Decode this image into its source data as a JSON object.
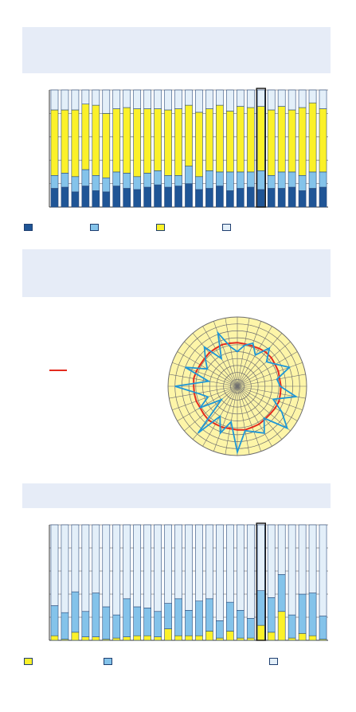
{
  "colors": {
    "navy": "#1f5596",
    "lightblue": "#84c3ea",
    "yellow": "#fbf129",
    "pale": "#e3eff9",
    "polar_fill": "#fdf5a8",
    "polar_grid": "#6f6f6f",
    "red": "#e32b1e",
    "cyan": "#1f97d6",
    "header_bg": "#e6ecf7"
  },
  "legend1": [
    {
      "color": "navy",
      "label": ""
    },
    {
      "color": "lightblue",
      "label": ""
    },
    {
      "color": "yellow",
      "label": ""
    },
    {
      "color": "pale",
      "label": ""
    }
  ],
  "legend2": [
    {
      "color": "red",
      "label": ""
    }
  ],
  "legend3": [
    {
      "color": "yellow",
      "label": ""
    },
    {
      "color": "lightblue",
      "label": ""
    },
    {
      "color": "pale",
      "label": ""
    }
  ],
  "chart_data": [
    {
      "type": "bar",
      "stacked": true,
      "title": "",
      "ylim": [
        0,
        1
      ],
      "grid": true,
      "highlight_index": 20,
      "series": [
        {
          "color": "navy",
          "values": [
            0.16,
            0.17,
            0.13,
            0.18,
            0.14,
            0.13,
            0.18,
            0.16,
            0.15,
            0.17,
            0.19,
            0.17,
            0.18,
            0.2,
            0.15,
            0.16,
            0.18,
            0.14,
            0.16,
            0.17,
            0.15,
            0.16,
            0.16,
            0.17,
            0.14,
            0.16,
            0.17
          ]
        },
        {
          "color": "lightblue",
          "values": [
            0.11,
            0.12,
            0.13,
            0.14,
            0.13,
            0.12,
            0.12,
            0.13,
            0.11,
            0.12,
            0.12,
            0.1,
            0.09,
            0.15,
            0.11,
            0.15,
            0.12,
            0.16,
            0.14,
            0.13,
            0.16,
            0.11,
            0.14,
            0.13,
            0.13,
            0.14,
            0.13
          ]
        },
        {
          "color": "yellow",
          "values": [
            0.56,
            0.54,
            0.57,
            0.56,
            0.6,
            0.55,
            0.54,
            0.56,
            0.58,
            0.55,
            0.53,
            0.56,
            0.57,
            0.52,
            0.55,
            0.53,
            0.57,
            0.52,
            0.56,
            0.55,
            0.55,
            0.56,
            0.56,
            0.53,
            0.58,
            0.59,
            0.54
          ]
        },
        {
          "color": "pale",
          "values": [
            0.17,
            0.17,
            0.17,
            0.12,
            0.13,
            0.2,
            0.16,
            0.15,
            0.16,
            0.16,
            0.16,
            0.17,
            0.16,
            0.13,
            0.19,
            0.16,
            0.13,
            0.18,
            0.14,
            0.15,
            0.14,
            0.17,
            0.14,
            0.17,
            0.15,
            0.11,
            0.16
          ]
        }
      ]
    },
    {
      "type": "radar",
      "title": "",
      "rmax": 1,
      "rings": 9,
      "spokes": 36,
      "reference_radius": 0.63,
      "series": [
        {
          "color": "red",
          "values": [
            0.63,
            0.62,
            0.62,
            0.63,
            0.64,
            0.64,
            0.63,
            0.63,
            0.62,
            0.63,
            0.63,
            0.64,
            0.63,
            0.62,
            0.62,
            0.63,
            0.63,
            0.64,
            0.63,
            0.62,
            0.63,
            0.63,
            0.64,
            0.63,
            0.62,
            0.63,
            0.63,
            0.63,
            0.64,
            0.63,
            0.62,
            0.62,
            0.63,
            0.63,
            0.64,
            0.63
          ]
        },
        {
          "color": "cyan",
          "values": [
            0.5,
            0.6,
            0.66,
            0.52,
            0.72,
            0.55,
            0.64,
            0.8,
            0.58,
            0.62,
            0.86,
            0.55,
            0.74,
            0.94,
            0.6,
            0.78,
            0.7,
            0.65,
            0.95,
            0.52,
            0.72,
            0.5,
            0.88,
            0.3,
            0.62,
            0.45,
            0.58,
            0.9,
            0.42,
            0.8,
            0.5,
            0.6,
            0.74,
            0.46,
            0.82,
            0.58
          ]
        }
      ]
    },
    {
      "type": "bar",
      "stacked": true,
      "title": "",
      "ylim": [
        0,
        1
      ],
      "grid": true,
      "highlight_index": 20,
      "series": [
        {
          "color": "yellow",
          "values": [
            0.04,
            0.01,
            0.07,
            0.03,
            0.03,
            0.01,
            0.02,
            0.03,
            0.04,
            0.04,
            0.03,
            0.1,
            0.04,
            0.04,
            0.04,
            0.08,
            0.02,
            0.08,
            0.02,
            0.02,
            0.13,
            0.07,
            0.25,
            0.02,
            0.06,
            0.04,
            0.01
          ]
        },
        {
          "color": "lightblue",
          "values": [
            0.26,
            0.23,
            0.35,
            0.22,
            0.38,
            0.28,
            0.2,
            0.33,
            0.25,
            0.24,
            0.22,
            0.22,
            0.32,
            0.22,
            0.3,
            0.28,
            0.15,
            0.25,
            0.24,
            0.17,
            0.3,
            0.3,
            0.32,
            0.2,
            0.34,
            0.37,
            0.2
          ]
        },
        {
          "color": "pale",
          "values": [
            0.7,
            0.76,
            0.58,
            0.75,
            0.59,
            0.71,
            0.78,
            0.64,
            0.71,
            0.72,
            0.75,
            0.68,
            0.64,
            0.74,
            0.66,
            0.64,
            0.83,
            0.67,
            0.74,
            0.81,
            0.57,
            0.63,
            0.43,
            0.78,
            0.6,
            0.59,
            0.79
          ]
        }
      ]
    }
  ]
}
